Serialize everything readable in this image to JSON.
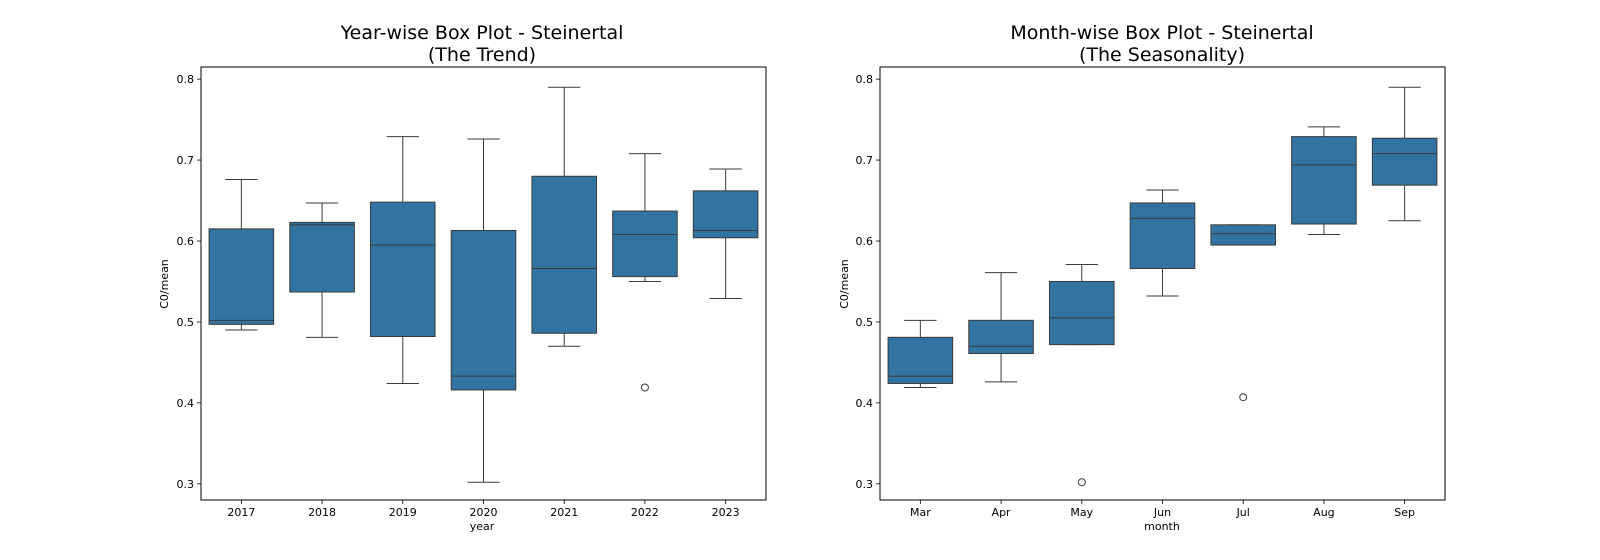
{
  "chart_data": [
    {
      "type": "box",
      "title": "Year-wise Box Plot - Steinertal",
      "subtitle": "(The Trend)",
      "xlabel": "year",
      "ylabel": "C0/mean",
      "ylim": [
        0.28,
        0.815
      ],
      "yticks": [
        "0.3",
        "0.4",
        "0.5",
        "0.6",
        "0.7",
        "0.8"
      ],
      "color": "#3274a1",
      "categories": [
        "2017",
        "2018",
        "2019",
        "2020",
        "2021",
        "2022",
        "2023"
      ],
      "boxes": [
        {
          "whislo": 0.49,
          "q1": 0.497,
          "med": 0.502,
          "q3": 0.615,
          "whishi": 0.676,
          "fliers": []
        },
        {
          "whislo": 0.481,
          "q1": 0.537,
          "med": 0.62,
          "q3": 0.623,
          "whishi": 0.647,
          "fliers": []
        },
        {
          "whislo": 0.424,
          "q1": 0.482,
          "med": 0.595,
          "q3": 0.648,
          "whishi": 0.729,
          "fliers": []
        },
        {
          "whislo": 0.302,
          "q1": 0.416,
          "med": 0.433,
          "q3": 0.613,
          "whishi": 0.726,
          "fliers": []
        },
        {
          "whislo": 0.47,
          "q1": 0.486,
          "med": 0.566,
          "q3": 0.68,
          "whishi": 0.79,
          "fliers": []
        },
        {
          "whislo": 0.55,
          "q1": 0.556,
          "med": 0.608,
          "q3": 0.637,
          "whishi": 0.708,
          "fliers": [
            0.419
          ]
        },
        {
          "whislo": 0.529,
          "q1": 0.604,
          "med": 0.613,
          "q3": 0.662,
          "whishi": 0.689,
          "fliers": []
        }
      ]
    },
    {
      "type": "box",
      "title": "Month-wise Box Plot - Steinertal",
      "subtitle": "(The Seasonality)",
      "xlabel": "month",
      "ylabel": "C0/mean",
      "ylim": [
        0.28,
        0.815
      ],
      "yticks": [
        "0.3",
        "0.4",
        "0.5",
        "0.6",
        "0.7",
        "0.8"
      ],
      "color": "#3274a1",
      "categories": [
        "Mar",
        "Apr",
        "May",
        "Jun",
        "Jul",
        "Aug",
        "Sep"
      ],
      "boxes": [
        {
          "whislo": 0.419,
          "q1": 0.424,
          "med": 0.433,
          "q3": 0.481,
          "whishi": 0.502,
          "fliers": []
        },
        {
          "whislo": 0.426,
          "q1": 0.461,
          "med": 0.47,
          "q3": 0.502,
          "whishi": 0.561,
          "fliers": []
        },
        {
          "whislo": 0.472,
          "q1": 0.472,
          "med": 0.505,
          "q3": 0.55,
          "whishi": 0.571,
          "fliers": [
            0.302
          ]
        },
        {
          "whislo": 0.532,
          "q1": 0.566,
          "med": 0.628,
          "q3": 0.647,
          "whishi": 0.663,
          "fliers": []
        },
        {
          "whislo": 0.595,
          "q1": 0.595,
          "med": 0.609,
          "q3": 0.62,
          "whishi": 0.62,
          "fliers": [
            0.407
          ]
        },
        {
          "whislo": 0.608,
          "q1": 0.621,
          "med": 0.694,
          "q3": 0.729,
          "whishi": 0.741,
          "fliers": []
        },
        {
          "whislo": 0.625,
          "q1": 0.669,
          "med": 0.708,
          "q3": 0.727,
          "whishi": 0.79,
          "fliers": []
        }
      ]
    }
  ]
}
